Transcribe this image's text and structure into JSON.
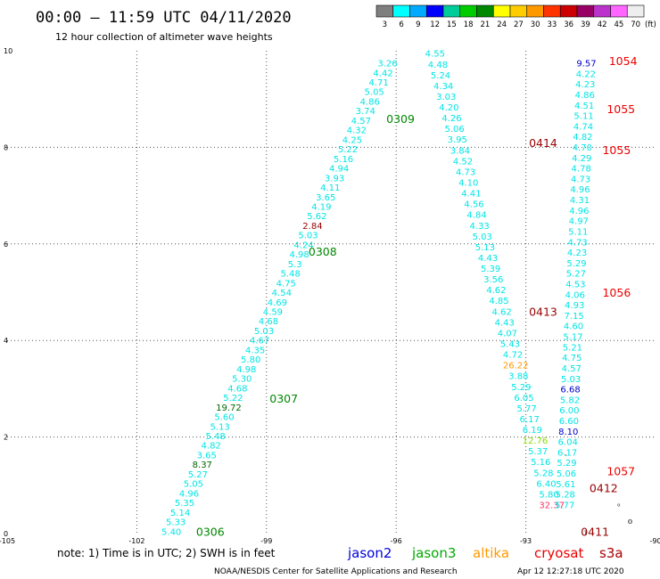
{
  "header": {
    "title": "00:00 – 11:59 UTC 04/11/2020",
    "subtitle": "12 hour collection of altimeter wave heights"
  },
  "color_scale": {
    "colors": [
      "#7f7f7f",
      "#00ffff",
      "#00aaff",
      "#0000ff",
      "#00cc99",
      "#00cc00",
      "#008800",
      "#ffff00",
      "#ffcc00",
      "#ff9900",
      "#ff3300",
      "#cc0000",
      "#990066",
      "#bb33cc",
      "#ff66ff",
      "#eeeeee"
    ],
    "labels": [
      "3",
      "6",
      "9",
      "12",
      "15",
      "18",
      "21",
      "24",
      "27",
      "30",
      "33",
      "36",
      "39",
      "42",
      "45",
      "70"
    ],
    "unit": "(ft)"
  },
  "footer": {
    "note": "note: 1) Time is in UTC; 2) SWH is in feet",
    "legend": [
      {
        "name": "jason2",
        "color": "#0000dd"
      },
      {
        "name": "jason3",
        "color": "#00aa00"
      },
      {
        "name": "altika",
        "color": "#ff9900"
      },
      {
        "name": "cryosat",
        "color": "#ee0000"
      },
      {
        "name": "s3a",
        "color": "#aa0000"
      }
    ],
    "credit": "NOAA/NESDIS Center for Satellite Applications and Research",
    "timestamp": "Apr 12 12:27:18 UTC 2020"
  },
  "chart_data": {
    "type": "scatter",
    "xlim": [
      -105,
      -90
    ],
    "ylim": [
      0,
      10
    ],
    "x_ticks": [
      "-105",
      "-102",
      "-99",
      "-96",
      "-93",
      "-90"
    ],
    "y_ticks": [
      "0",
      "2",
      "4",
      "6",
      "8",
      "10"
    ],
    "grid": true,
    "colors": {
      "cyan": "#00e5e5",
      "green": "#008800",
      "darkgreen": "#006600",
      "yellowgreen": "#88dd00",
      "orange": "#ff9900",
      "blue": "#0000cc",
      "red": "#ee0000",
      "darkred": "#990000",
      "pink": "#ff3366",
      "black": "#000000"
    },
    "tracks": [
      {
        "x0": -101.2,
        "y0": 0.05,
        "x1": -96.2,
        "y1": 9.75,
        "values": [
          "5.40",
          "5.33",
          "5.14",
          "5.35",
          "4.96",
          "5.05",
          "5.27",
          "8.37",
          "3.65",
          "4.82",
          "5.48",
          "5.13",
          "5.60",
          "19.72",
          "5.22",
          "4.68",
          "5.30",
          "4.98",
          "5.80",
          "4.35",
          "4.67",
          "5.03",
          "4.68",
          "4.59",
          "4.69",
          "4.54",
          "4.75",
          "5.48",
          "5.3",
          "4.98",
          "4.24",
          "5.03",
          "2.84",
          "5.62",
          "4.19",
          "3.65",
          "4.11",
          "3.93",
          "4.94",
          "5.16",
          "5.22",
          "4.25",
          "4.32",
          "4.57",
          "3.74",
          "4.86",
          "5.05",
          "4.71",
          "4.42",
          "3.26"
        ],
        "colors": {
          "8.37": "darkgreen",
          "19.72": "darkgreen",
          "2.84": "darkred"
        }
      },
      {
        "x0": -95.1,
        "y0": 9.95,
        "x1": -92.4,
        "y1": 0.6,
        "values": [
          "4.55",
          "4.48",
          "5.24",
          "4.34",
          "3.03",
          "4.20",
          "4.26",
          "5.06",
          "3.95",
          "3.84",
          "4.52",
          "4.73",
          "4.10",
          "4.41",
          "4.56",
          "4.84",
          "4.33",
          "5.03",
          "5.13",
          "4.43",
          "5.39",
          "3.56",
          "4.62",
          "4.85",
          "4.62",
          "4.43",
          "4.07",
          "5.43",
          "4.72",
          "26.22",
          "3.88",
          "5.29",
          "6.05",
          "5.77",
          "6.17",
          "6.19",
          "12.76",
          "5.37",
          "5.16",
          "5.28",
          "6.40",
          "5.80",
          "32.37"
        ],
        "colors": {
          "26.22": "orange",
          "12.76": "yellowgreen",
          "32.37": "pink"
        }
      },
      {
        "x0": -91.6,
        "y0": 9.75,
        "x1": -92.1,
        "y1": 0.6,
        "values": [
          "9.57",
          "4.22",
          "4.23",
          "4.86",
          "4.51",
          "5.11",
          "4.74",
          "4.82",
          "4.70",
          "4.29",
          "4.78",
          "4.73",
          "4.96",
          "4.31",
          "4.96",
          "4.97",
          "5.11",
          "4.73",
          "4.23",
          "5.29",
          "5.27",
          "4.53",
          "4.06",
          "4.93",
          "7.15",
          "4.60",
          "5.17",
          "5.21",
          "4.75",
          "4.57",
          "5.03",
          "6.68",
          "5.82",
          "6.00",
          "6.60",
          "8.10",
          "6.04",
          "6.17",
          "5.29",
          "5.06",
          "5.61",
          "5.28",
          "5.77"
        ],
        "colors": {
          "9.57": "blue",
          "6.68": "blue",
          "8.10": "blue"
        }
      }
    ],
    "annotations": [
      {
        "text": "0306",
        "x": -100.3,
        "y": 0.05,
        "color": "green"
      },
      {
        "text": "0307",
        "x": -98.6,
        "y": 2.8,
        "color": "green"
      },
      {
        "text": "0308",
        "x": -97.7,
        "y": 5.85,
        "color": "green"
      },
      {
        "text": "0309",
        "x": -95.9,
        "y": 8.6,
        "color": "green"
      },
      {
        "text": "0414",
        "x": -92.6,
        "y": 8.1,
        "color": "darkred"
      },
      {
        "text": "0413",
        "x": -92.6,
        "y": 4.6,
        "color": "darkred"
      },
      {
        "text": "0412",
        "x": -91.2,
        "y": 0.95,
        "color": "darkred"
      },
      {
        "text": "0411",
        "x": -91.4,
        "y": 0.05,
        "color": "darkred"
      },
      {
        "text": "1054",
        "x": -90.75,
        "y": 9.8,
        "color": "red"
      },
      {
        "text": "1055",
        "x": -90.8,
        "y": 8.8,
        "color": "red"
      },
      {
        "text": "1055",
        "x": -90.9,
        "y": 7.95,
        "color": "red"
      },
      {
        "text": "1056",
        "x": -90.9,
        "y": 5.0,
        "color": "red"
      },
      {
        "text": "1057",
        "x": -90.8,
        "y": 1.3,
        "color": "red"
      }
    ]
  }
}
